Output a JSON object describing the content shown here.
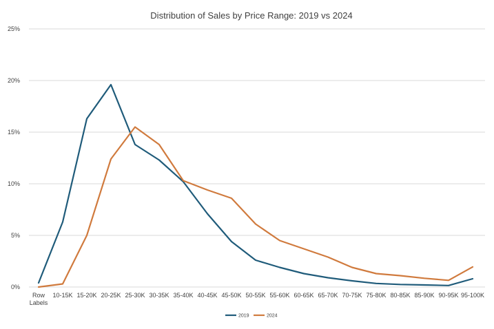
{
  "chart_data": {
    "type": "line",
    "title": "Distribution of Sales by Price Range: 2019 vs 2024",
    "xlabel": "",
    "ylabel": "",
    "categories": [
      "Row Labels",
      "10-15K",
      "15-20K",
      "20-25K",
      "25-30K",
      "30-35K",
      "35-40K",
      "40-45K",
      "45-50K",
      "50-55K",
      "55-60K",
      "60-65K",
      "65-70K",
      "70-75K",
      "75-80K",
      "80-85K",
      "85-90K",
      "90-95K",
      "95-100K"
    ],
    "ylim": [
      0,
      25
    ],
    "yticks": [
      "0%",
      "5%",
      "10%",
      "15%",
      "20%",
      "25%"
    ],
    "grid": true,
    "legend_position": "bottom",
    "series": [
      {
        "name": "2019",
        "color": "#1f5b7a",
        "values": [
          0.4,
          6.3,
          16.3,
          19.6,
          13.8,
          12.3,
          10.2,
          7.1,
          4.4,
          2.6,
          1.9,
          1.3,
          0.9,
          0.6,
          0.35,
          0.25,
          0.2,
          0.15,
          0.8
        ]
      },
      {
        "name": "2024",
        "color": "#d07a3d",
        "values": [
          0.0,
          0.3,
          5.0,
          12.4,
          15.5,
          13.8,
          10.3,
          9.4,
          8.6,
          6.1,
          4.5,
          3.7,
          2.9,
          1.9,
          1.3,
          1.1,
          0.85,
          0.65,
          1.95
        ]
      }
    ]
  }
}
